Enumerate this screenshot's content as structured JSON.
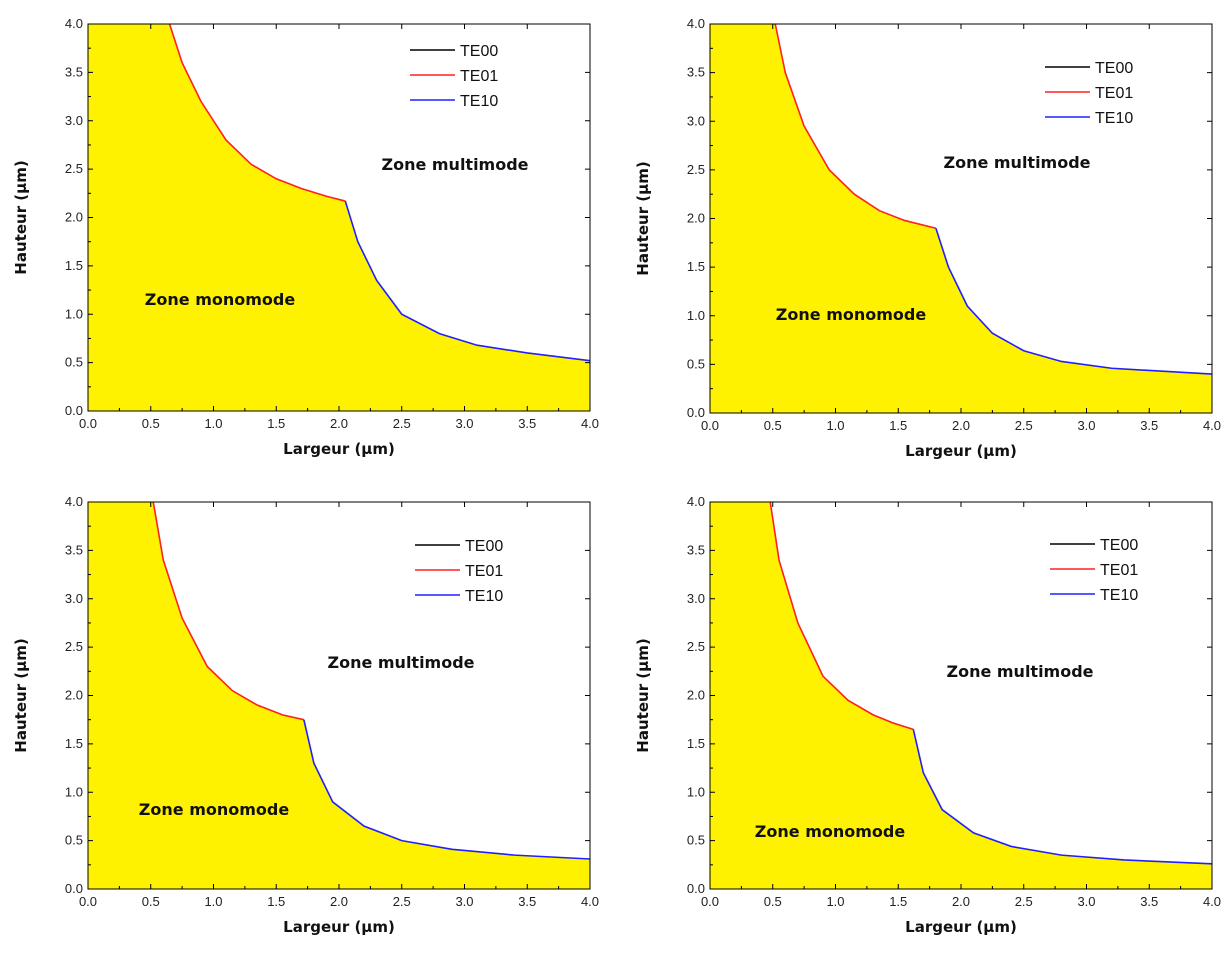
{
  "colors": {
    "region_fill": "#fff200",
    "axis": "#000000",
    "TE00": "#000000",
    "TE01": "#ff2020",
    "TE10": "#2020ff"
  },
  "chart_data": [
    {
      "type": "area",
      "title": "",
      "xlabel": "Largeur (µm)",
      "ylabel": "Hauteur (µm)",
      "xlim": [
        0,
        4
      ],
      "ylim": [
        0,
        4
      ],
      "xticks": [
        "0.0",
        "0.5",
        "1.0",
        "1.5",
        "2.0",
        "2.5",
        "3.0",
        "3.5",
        "4.0"
      ],
      "yticks": [
        "0.0",
        "0.5",
        "1.0",
        "1.5",
        "2.0",
        "2.5",
        "3.0",
        "3.5",
        "4.0"
      ],
      "legend": [
        "TE00",
        "TE01",
        "TE10"
      ],
      "legend_position": "top-right",
      "zone_multimode": "Zone multimode",
      "zone_monomode": "Zone monomode",
      "boundary_TE01": {
        "x": [
          0.65,
          0.75,
          0.9,
          1.1,
          1.3,
          1.5,
          1.7,
          1.9,
          2.05
        ],
        "y": [
          4.0,
          3.6,
          3.2,
          2.8,
          2.55,
          2.4,
          2.3,
          2.22,
          2.17
        ]
      },
      "boundary_TE10": {
        "x": [
          2.05,
          2.15,
          2.3,
          2.5,
          2.8,
          3.1,
          3.5,
          4.0
        ],
        "y": [
          2.17,
          1.75,
          1.35,
          1.0,
          0.8,
          0.68,
          0.6,
          0.52
        ]
      }
    },
    {
      "type": "area",
      "title": "",
      "xlabel": "Largeur (µm)",
      "ylabel": "Hauteur (µm)",
      "xlim": [
        0,
        4
      ],
      "ylim": [
        0,
        4
      ],
      "xticks": [
        "0.0",
        "0.5",
        "1.0",
        "1.5",
        "2.0",
        "2.5",
        "3.0",
        "3.5",
        "4.0"
      ],
      "yticks": [
        "0.0",
        "0.5",
        "1.0",
        "1.5",
        "2.0",
        "2.5",
        "3.0",
        "3.5",
        "4.0"
      ],
      "legend": [
        "TE00",
        "TE01",
        "TE10"
      ],
      "legend_position": "top-right",
      "zone_multimode": "Zone multimode",
      "zone_monomode": "Zone monomode",
      "boundary_TE01": {
        "x": [
          0.52,
          0.6,
          0.75,
          0.95,
          1.15,
          1.35,
          1.55,
          1.8
        ],
        "y": [
          4.0,
          3.5,
          2.95,
          2.5,
          2.25,
          2.08,
          1.98,
          1.9
        ]
      },
      "boundary_TE10": {
        "x": [
          1.8,
          1.9,
          2.05,
          2.25,
          2.5,
          2.8,
          3.2,
          4.0
        ],
        "y": [
          1.9,
          1.5,
          1.1,
          0.82,
          0.64,
          0.53,
          0.46,
          0.4
        ]
      }
    },
    {
      "type": "area",
      "title": "",
      "xlabel": "Largeur (µm)",
      "ylabel": "Hauteur (µm)",
      "xlim": [
        0,
        4
      ],
      "ylim": [
        0,
        4
      ],
      "xticks": [
        "0.0",
        "0.5",
        "1.0",
        "1.5",
        "2.0",
        "2.5",
        "3.0",
        "3.5",
        "4.0"
      ],
      "yticks": [
        "0.0",
        "0.5",
        "1.0",
        "1.5",
        "2.0",
        "2.5",
        "3.0",
        "3.5",
        "4.0"
      ],
      "legend": [
        "TE00",
        "TE01",
        "TE10"
      ],
      "legend_position": "top-right",
      "zone_multimode": "Zone multimode",
      "zone_monomode": "Zone monomode",
      "boundary_TE01": {
        "x": [
          0.52,
          0.6,
          0.75,
          0.95,
          1.15,
          1.35,
          1.55,
          1.72
        ],
        "y": [
          4.0,
          3.4,
          2.8,
          2.3,
          2.05,
          1.9,
          1.8,
          1.75
        ]
      },
      "boundary_TE10": {
        "x": [
          1.72,
          1.8,
          1.95,
          2.2,
          2.5,
          2.9,
          3.4,
          4.0
        ],
        "y": [
          1.75,
          1.3,
          0.9,
          0.65,
          0.5,
          0.41,
          0.35,
          0.31
        ]
      }
    },
    {
      "type": "area",
      "title": "",
      "xlabel": "Largeur (µm)",
      "ylabel": "Hauteur (µm)",
      "xlim": [
        0,
        4
      ],
      "ylim": [
        0,
        4
      ],
      "xticks": [
        "0.0",
        "0.5",
        "1.0",
        "1.5",
        "2.0",
        "2.5",
        "3.0",
        "3.5",
        "4.0"
      ],
      "yticks": [
        "0.0",
        "0.5",
        "1.0",
        "1.5",
        "2.0",
        "2.5",
        "3.0",
        "3.5",
        "4.0"
      ],
      "legend": [
        "TE00",
        "TE01",
        "TE10"
      ],
      "legend_position": "top-right",
      "zone_multimode": "Zone multimode",
      "zone_monomode": "Zone monomode",
      "boundary_TE01": {
        "x": [
          0.48,
          0.55,
          0.7,
          0.9,
          1.1,
          1.3,
          1.45,
          1.62
        ],
        "y": [
          4.0,
          3.4,
          2.75,
          2.2,
          1.95,
          1.8,
          1.72,
          1.65
        ]
      },
      "boundary_TE10": {
        "x": [
          1.62,
          1.7,
          1.85,
          2.1,
          2.4,
          2.8,
          3.3,
          4.0
        ],
        "y": [
          1.65,
          1.2,
          0.82,
          0.58,
          0.44,
          0.35,
          0.3,
          0.26
        ]
      }
    }
  ]
}
